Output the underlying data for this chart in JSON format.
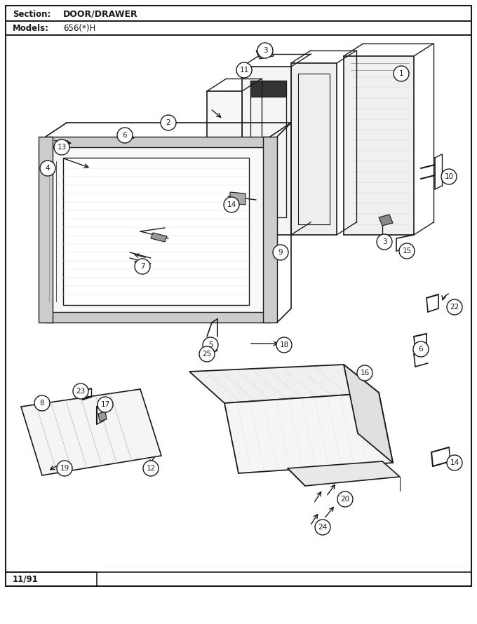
{
  "title_section": "Section:",
  "title_name": "DOOR/DRAWER",
  "models_label": "Models:",
  "models_value": "656(*)H",
  "date_code": "11/91",
  "bg_color": "#ffffff",
  "line_color": "#1a1a1a",
  "text_color": "#1a1a1a",
  "fig_width": 6.8,
  "fig_height": 8.9,
  "dpi": 100
}
